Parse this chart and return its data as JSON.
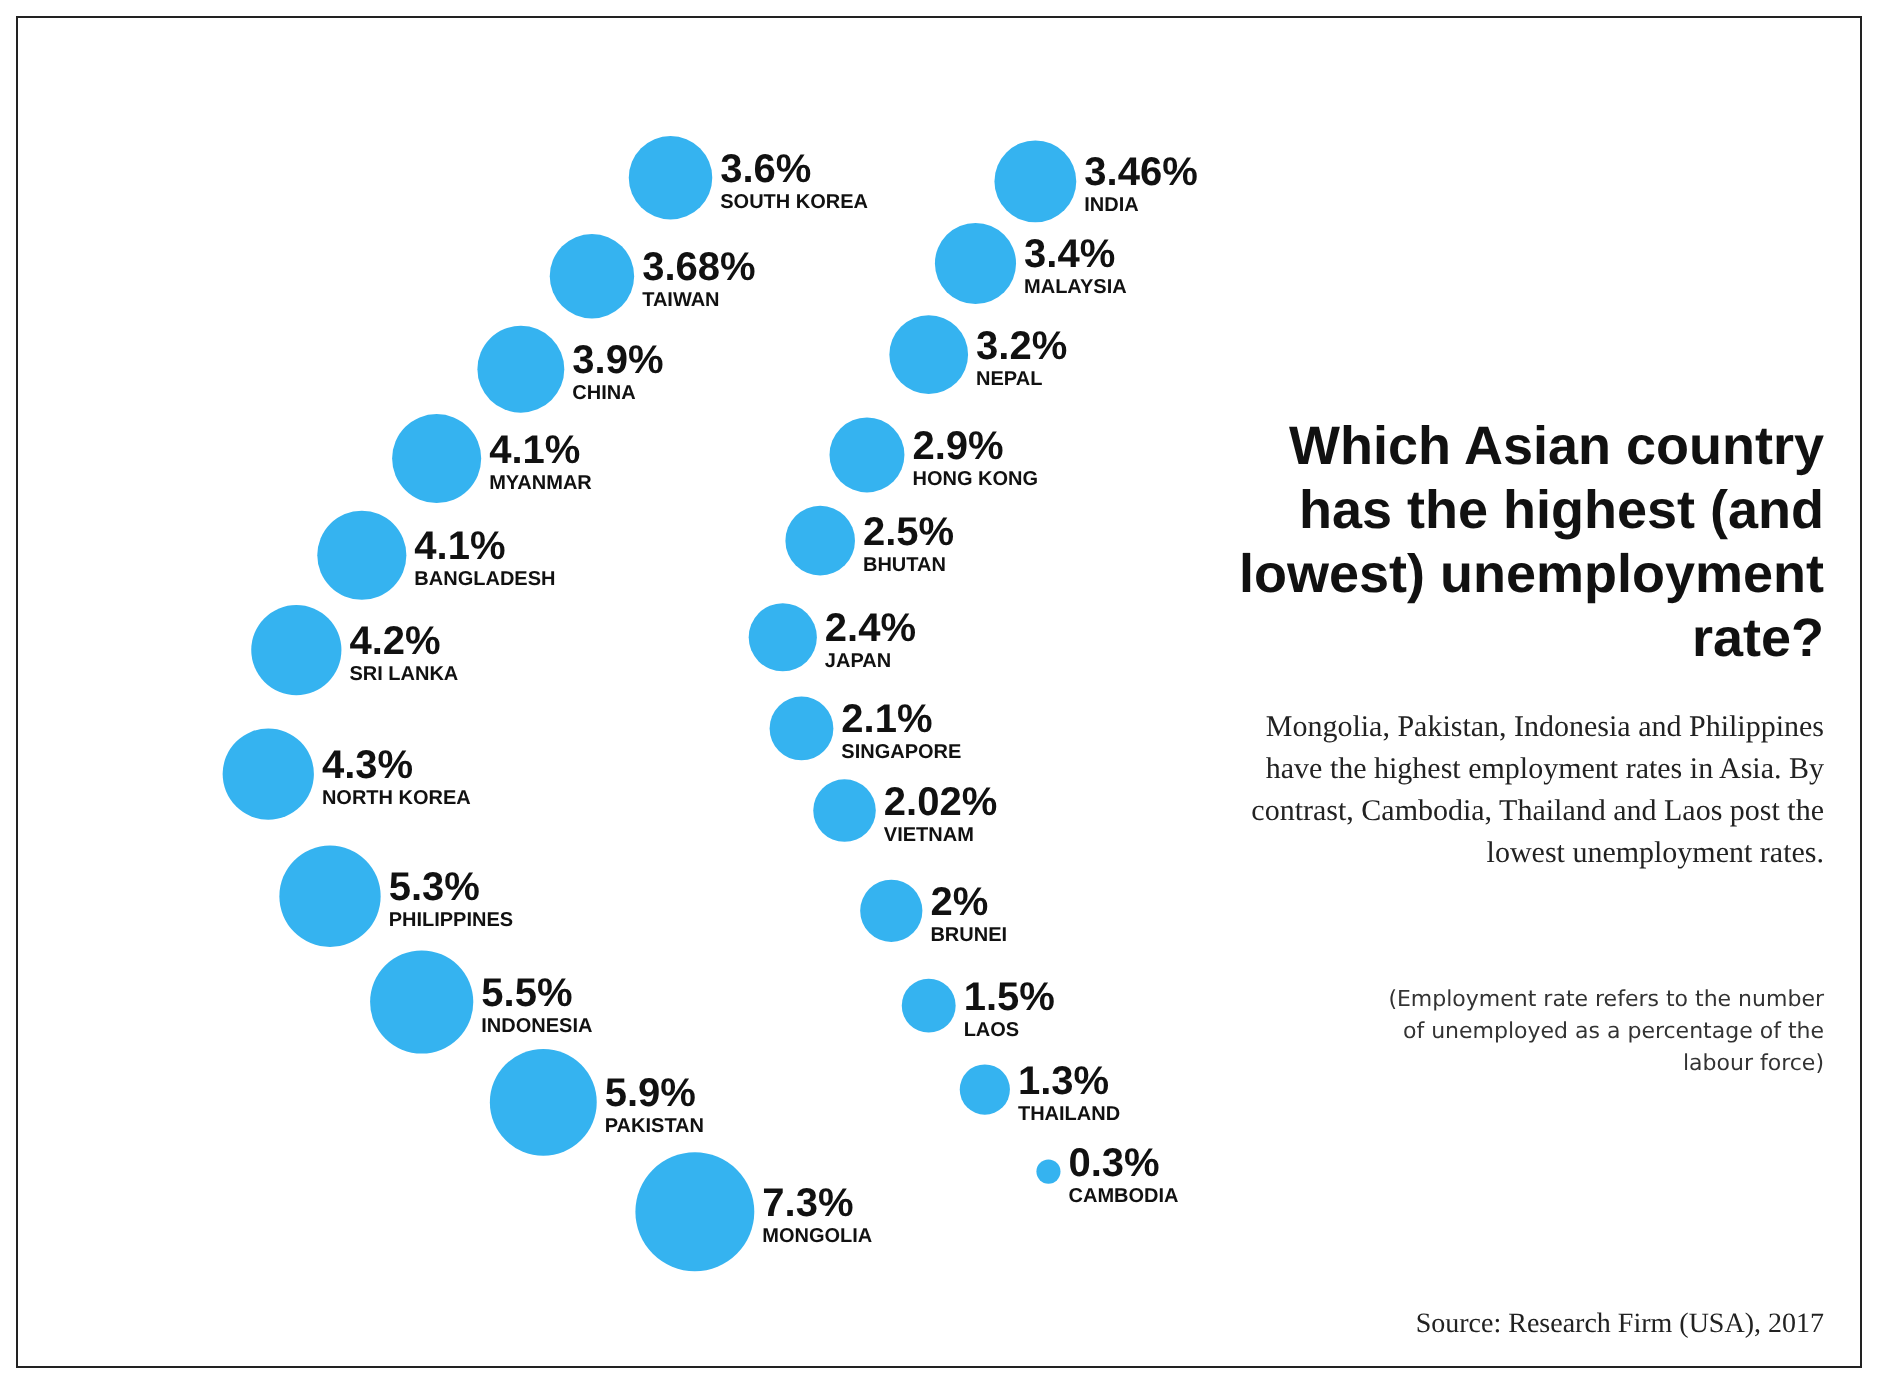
{
  "chart_data": {
    "type": "other",
    "title": "Which Asian country has the highest (and lowest) unemployment rate?",
    "subtitle": "Mongolia, Pakistan, Indonesia and Philippines have the highest employment rates in Asia. By contrast, Cambodia, Thailand and Laos post the lowest unemployment rates.",
    "categories": [
      "SOUTH KOREA",
      "TAIWAN",
      "CHINA",
      "MYANMAR",
      "BANGLADESH",
      "SRI LANKA",
      "NORTH KOREA",
      "PHILIPPINES",
      "INDONESIA",
      "PAKISTAN",
      "MONGOLIA",
      "INDIA",
      "MALAYSIA",
      "NEPAL",
      "HONG KONG",
      "BHUTAN",
      "JAPAN",
      "SINGAPORE",
      "VIETNAM",
      "BRUNEI",
      "LAOS",
      "THAILAND",
      "CAMBODIA"
    ],
    "values": [
      3.6,
      3.68,
      3.9,
      4.1,
      4.1,
      4.2,
      4.3,
      5.3,
      5.5,
      5.9,
      7.3,
      3.46,
      3.4,
      3.2,
      2.9,
      2.5,
      2.4,
      2.1,
      2.02,
      2,
      1.5,
      1.3,
      0.3
    ],
    "value_labels": [
      "3.6%",
      "3.68%",
      "3.9%",
      "4.1%",
      "4.1%",
      "4.2%",
      "4.3%",
      "5.3%",
      "5.5%",
      "5.9%",
      "7.3%",
      "3.46%",
      "3.4%",
      "3.2%",
      "2.9%",
      "2.5%",
      "2.4%",
      "2.1%",
      "2.02%",
      "2%",
      "1.5%",
      "1.3%",
      "0.3%"
    ],
    "color": "#35b3f0",
    "annotations": [
      "(Employment rate refers to the number of unemployed as a percentage of the labour force)",
      "Source: Research Firm (USA), 2017"
    ]
  }
}
